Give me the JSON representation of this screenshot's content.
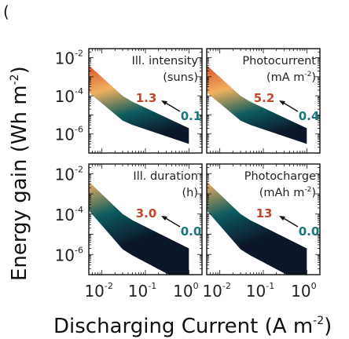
{
  "panel_letter": "(",
  "ylabel": "Energy gain (Wh m",
  "ylabel_sup": "-2",
  "ylabel_end": ")",
  "xlabel": "Discharging Current (A m",
  "xlabel_sup": "-2",
  "xlabel_end": ")",
  "colors": {
    "high": "#d9542a",
    "mid": "#f0b060",
    "low": "#0d5c5e",
    "dark": "#0b1628",
    "label_high": "#c4452b",
    "label_low": "#16767a"
  },
  "chart_data": [
    {
      "type": "area",
      "title": "Ill. intensity",
      "unit": "(suns)",
      "unit_sup": "",
      "unit_end": "",
      "high_label": "1.3",
      "low_label": "0.1",
      "xscale": "log",
      "yscale": "log",
      "xlim": [
        0.005,
        2
      ],
      "ylim": [
        1e-07,
        0.03
      ],
      "x": [
        0.005,
        0.03,
        0.05,
        1
      ],
      "upper": [
        0.004,
        0.0001,
        5e-05,
        2e-06
      ],
      "lower": [
        0.00015,
        5e-06,
        3e-06,
        3e-07
      ],
      "gradient": [
        "high",
        "mid",
        "low",
        "dark"
      ],
      "yticks": [
        "10",
        "10",
        "10"
      ],
      "ytick_exp": [
        "-2",
        "-4",
        "-6"
      ]
    },
    {
      "type": "area",
      "title": "Photocurrent",
      "unit": "(mA m",
      "unit_sup": "-2",
      "unit_end": ")",
      "high_label": "5.2",
      "low_label": "0.4",
      "xscale": "log",
      "yscale": "log",
      "xlim": [
        0.005,
        2
      ],
      "ylim": [
        1e-07,
        0.03
      ],
      "x": [
        0.005,
        0.03,
        0.05,
        1
      ],
      "upper": [
        0.004,
        0.0001,
        5e-05,
        2e-06
      ],
      "lower": [
        0.00015,
        5e-06,
        3e-06,
        3e-07
      ],
      "gradient": [
        "high",
        "mid",
        "low",
        "dark"
      ]
    },
    {
      "type": "area",
      "title": "Ill. duration",
      "unit": "(h)",
      "unit_sup": "",
      "unit_end": "",
      "high_label": "3.0",
      "low_label": "0.0",
      "xscale": "log",
      "yscale": "log",
      "xlim": [
        0.005,
        2
      ],
      "ylim": [
        1e-07,
        0.03
      ],
      "x": [
        0.005,
        0.03,
        0.05,
        1
      ],
      "upper": [
        0.004,
        0.0001,
        5e-05,
        2e-06
      ],
      "lower": [
        0.00015,
        1.8e-06,
        9e-07,
        3e-08
      ],
      "gradient": [
        "mid",
        "low",
        "dark",
        "dark"
      ],
      "yticks": [
        "10",
        "10",
        "10"
      ],
      "ytick_exp": [
        "-2",
        "-4",
        "-6"
      ],
      "xticks": [
        "10",
        "10",
        "10"
      ],
      "xtick_exp": [
        "-2",
        "-1",
        "0"
      ]
    },
    {
      "type": "area",
      "title": "Photocharge",
      "unit": "(mAh m",
      "unit_sup": "-2",
      "unit_end": ")",
      "high_label": "13",
      "low_label": "0.0",
      "xscale": "log",
      "yscale": "log",
      "xlim": [
        0.005,
        2
      ],
      "ylim": [
        1e-07,
        0.03
      ],
      "x": [
        0.005,
        0.03,
        0.05,
        1
      ],
      "upper": [
        0.004,
        0.0001,
        5e-05,
        2e-06
      ],
      "lower": [
        0.00015,
        1.8e-06,
        9e-07,
        3e-08
      ],
      "gradient": [
        "mid",
        "low",
        "dark",
        "dark"
      ],
      "xticks": [
        "10",
        "10",
        "10"
      ],
      "xtick_exp": [
        "-2",
        "-1",
        "0"
      ]
    }
  ]
}
